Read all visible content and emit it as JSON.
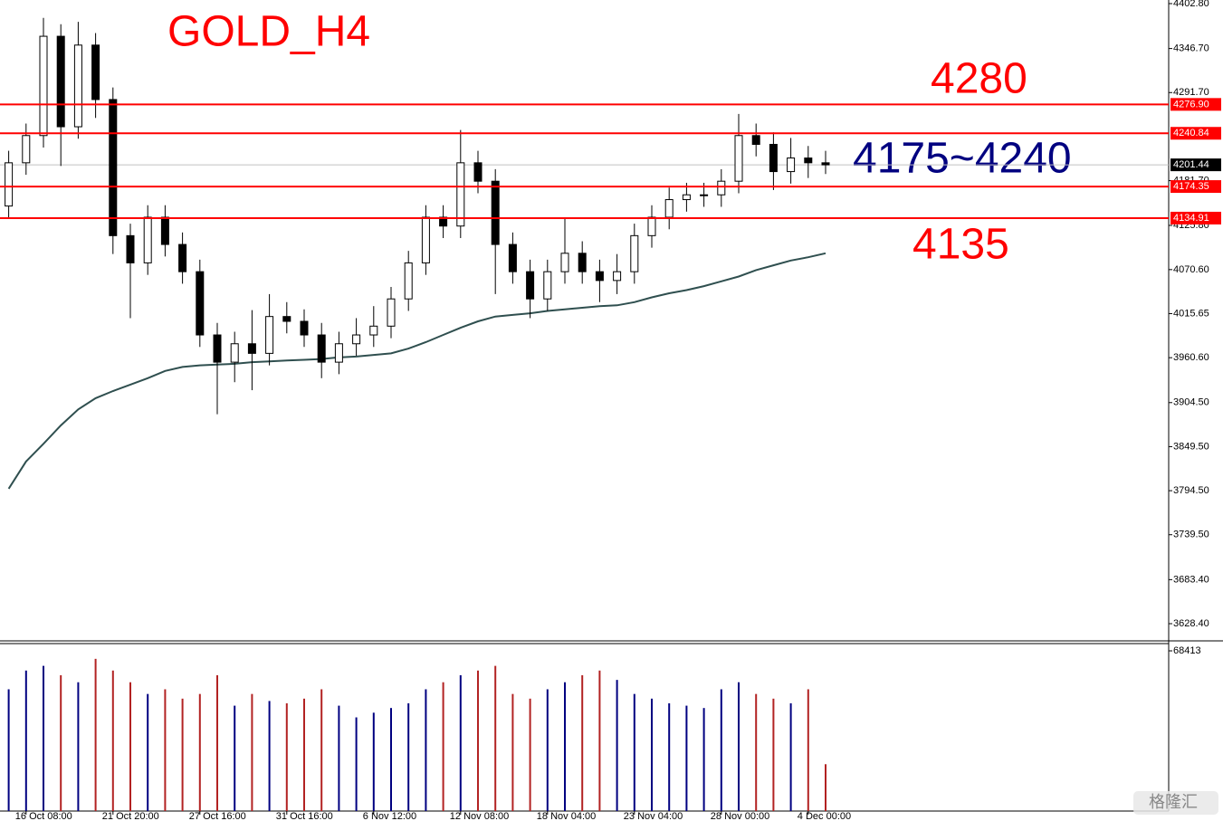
{
  "chart_data": {
    "type": "candlestick",
    "title": "GOLD_H4",
    "annotations": [
      {
        "text": "4280",
        "color": "#ff0000"
      },
      {
        "text": "4175~4240",
        "color": "#000080"
      },
      {
        "text": "4135",
        "color": "#ff0000"
      }
    ],
    "categories": [
      null,
      "16 Oct 08:00",
      null,
      null,
      null,
      null,
      "21 Oct 20:00",
      null,
      null,
      null,
      null,
      "27 Oct 16:00",
      null,
      null,
      null,
      null,
      "31 Oct 16:00",
      null,
      null,
      null,
      null,
      "6 Nov 12:00",
      null,
      null,
      null,
      null,
      "12 Nov 08:00",
      null,
      null,
      null,
      null,
      "18 Nov 04:00",
      null,
      null,
      null,
      null,
      "23 Nov 04:00",
      null,
      null,
      null,
      null,
      "28 Nov 00:00",
      null,
      null,
      null,
      null,
      "4 Dec 00:00",
      null
    ],
    "open": [
      4150,
      4204,
      4238,
      4362,
      4249,
      4351,
      4283,
      4113,
      4079,
      4136,
      4102,
      4068,
      3989,
      3955,
      3978,
      3966,
      4012,
      4006,
      3989,
      3955,
      3978,
      3989,
      4000,
      4034,
      4079,
      4136,
      4125,
      4204,
      4181,
      4102,
      4068,
      4034,
      4068,
      4091,
      4068,
      4057,
      4068,
      4113,
      4136,
      4158,
      4164,
      4164,
      4181,
      4238,
      4227,
      4193,
      4210,
      4204
    ],
    "high": [
      4219,
      4253,
      4385,
      4377,
      4380,
      4366,
      4298,
      4128,
      4151,
      4151,
      4117,
      4083,
      4004,
      3993,
      4020,
      4040,
      4030,
      4021,
      4004,
      3993,
      4010,
      4025,
      4049,
      4094,
      4151,
      4151,
      4245,
      4219,
      4196,
      4117,
      4083,
      4083,
      4135,
      4106,
      4083,
      4090,
      4128,
      4151,
      4173,
      4179,
      4179,
      4196,
      4265,
      4253,
      4242,
      4235,
      4225,
      4219
    ],
    "low": [
      4135,
      4189,
      4223,
      4200,
      4234,
      4260,
      4090,
      4010,
      4064,
      4087,
      4053,
      3974,
      3890,
      3930,
      3920,
      3951,
      3991,
      3974,
      3935,
      3940,
      3963,
      3974,
      3985,
      4019,
      4064,
      4110,
      4110,
      4166,
      4040,
      4053,
      4010,
      4019,
      4053,
      4053,
      4030,
      4040,
      4053,
      4098,
      4121,
      4143,
      4149,
      4149,
      4166,
      4212,
      4170,
      4178,
      4185,
      4190
    ],
    "close": [
      4204,
      4238,
      4362,
      4249,
      4351,
      4283,
      4113,
      4079,
      4136,
      4102,
      4068,
      3989,
      3955,
      3978,
      3966,
      4012,
      4006,
      3989,
      3955,
      3978,
      3989,
      4000,
      4034,
      4079,
      4136,
      4125,
      4204,
      4181,
      4102,
      4068,
      4034,
      4068,
      4091,
      4068,
      4057,
      4068,
      4113,
      4136,
      4158,
      4164,
      4164,
      4181,
      4238,
      4227,
      4193,
      4210,
      4204,
      4201.44
    ],
    "moving_average": {
      "color": "#2f4f4f",
      "values": [
        3797,
        3831,
        3853,
        3876,
        3896,
        3910,
        3919,
        3927,
        3935,
        3944,
        3949,
        3951,
        3952,
        3953,
        3955,
        3956,
        3957,
        3958,
        3959,
        3961,
        3962,
        3964,
        3966,
        3972,
        3980,
        3989,
        3998,
        4006,
        4012,
        4014,
        4016,
        4019,
        4021,
        4023,
        4025,
        4026,
        4030,
        4036,
        4041,
        4045,
        4050,
        4056,
        4062,
        4070,
        4076,
        4082,
        4086,
        4091
      ]
    },
    "ylim": [
      3609.2,
      4407.3
    ],
    "yticks": [
      {
        "value": 4402.8,
        "label": "4402.80"
      },
      {
        "value": 4346.7,
        "label": "4346.70"
      },
      {
        "value": 4291.7,
        "label": "4291.70"
      },
      {
        "value": 4181.7,
        "label": "4181.70"
      },
      {
        "value": 4125.8,
        "label": "4125.80"
      },
      {
        "value": 4070.6,
        "label": "4070.60"
      },
      {
        "value": 4015.65,
        "label": "4015.65"
      },
      {
        "value": 3960.6,
        "label": "3960.60"
      },
      {
        "value": 3904.5,
        "label": "3904.50"
      },
      {
        "value": 3849.5,
        "label": "3849.50"
      },
      {
        "value": 3794.5,
        "label": "3794.50"
      },
      {
        "value": 3739.5,
        "label": "3739.50"
      },
      {
        "value": 3683.4,
        "label": "3683.40"
      },
      {
        "value": 3628.4,
        "label": "3628.40"
      }
    ],
    "levels": [
      {
        "value": 4276.9,
        "label": "4276.90"
      },
      {
        "value": 4240.84,
        "label": "4240.84"
      },
      {
        "value": 4174.35,
        "label": "4174.35"
      },
      {
        "value": 4134.91,
        "label": "4134.91"
      }
    ],
    "level_color": "#ff0000",
    "current_price": {
      "value": 4201.44,
      "label": "4201.44"
    },
    "volume": [
      52000,
      60000,
      62000,
      58000,
      55000,
      65000,
      60000,
      55000,
      50000,
      52000,
      48000,
      50000,
      58000,
      45000,
      50000,
      47000,
      46000,
      48000,
      52000,
      45000,
      40000,
      42000,
      44000,
      46000,
      52000,
      55000,
      58000,
      60000,
      62000,
      50000,
      48000,
      52000,
      55000,
      58000,
      60000,
      56000,
      50000,
      48000,
      46000,
      45000,
      44000,
      52000,
      55000,
      50000,
      48000,
      46000,
      52000,
      20000
    ],
    "volume_lim": [
      0,
      71900
    ],
    "volume_ticks": [
      68413
    ],
    "up_color": "#000080",
    "down_color": "#b22222",
    "watermark": "格隆汇"
  }
}
